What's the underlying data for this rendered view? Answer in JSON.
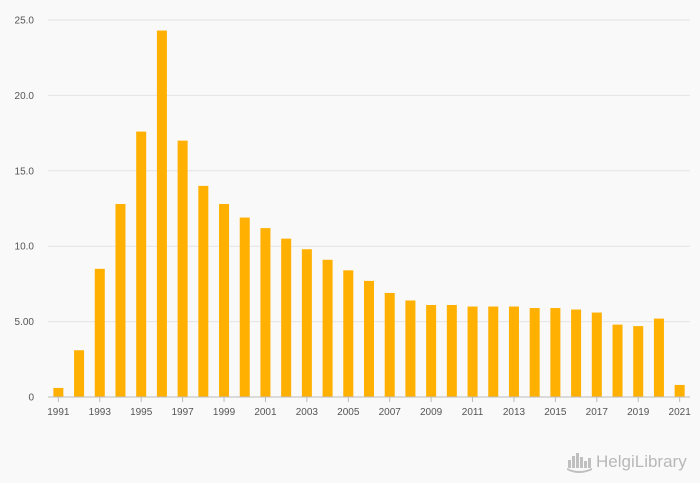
{
  "chart_data": {
    "type": "bar",
    "categories": [
      "1991",
      "1992",
      "1993",
      "1994",
      "1995",
      "1996",
      "1997",
      "1998",
      "1999",
      "2000",
      "2001",
      "2002",
      "2003",
      "2004",
      "2005",
      "2006",
      "2007",
      "2008",
      "2009",
      "2010",
      "2011",
      "2012",
      "2013",
      "2014",
      "2015",
      "2016",
      "2017",
      "2018",
      "2019",
      "2020",
      "2021"
    ],
    "values": [
      0.6,
      3.1,
      8.5,
      12.8,
      17.6,
      24.3,
      17.0,
      14.0,
      12.8,
      11.9,
      11.2,
      10.5,
      9.8,
      9.1,
      8.4,
      7.7,
      6.9,
      6.4,
      6.1,
      6.1,
      6.0,
      6.0,
      6.0,
      5.9,
      5.9,
      5.8,
      5.6,
      4.8,
      4.7,
      5.2,
      0.8
    ],
    "title": "",
    "xlabel": "",
    "ylabel": "",
    "ylim": [
      0,
      25
    ],
    "yticks": [
      "0",
      "5.00",
      "10.0",
      "15.0",
      "20.0",
      "25.0"
    ],
    "xtick_labels": [
      "1991",
      "1993",
      "1995",
      "1997",
      "1999",
      "2001",
      "2003",
      "2005",
      "2007",
      "2009",
      "2011",
      "2013",
      "2015",
      "2017",
      "2019",
      "2021"
    ],
    "grid": true,
    "bar_color": "#ffb000"
  },
  "logo": {
    "text": "HelgiLibrary",
    "icon": "skyline-icon"
  }
}
